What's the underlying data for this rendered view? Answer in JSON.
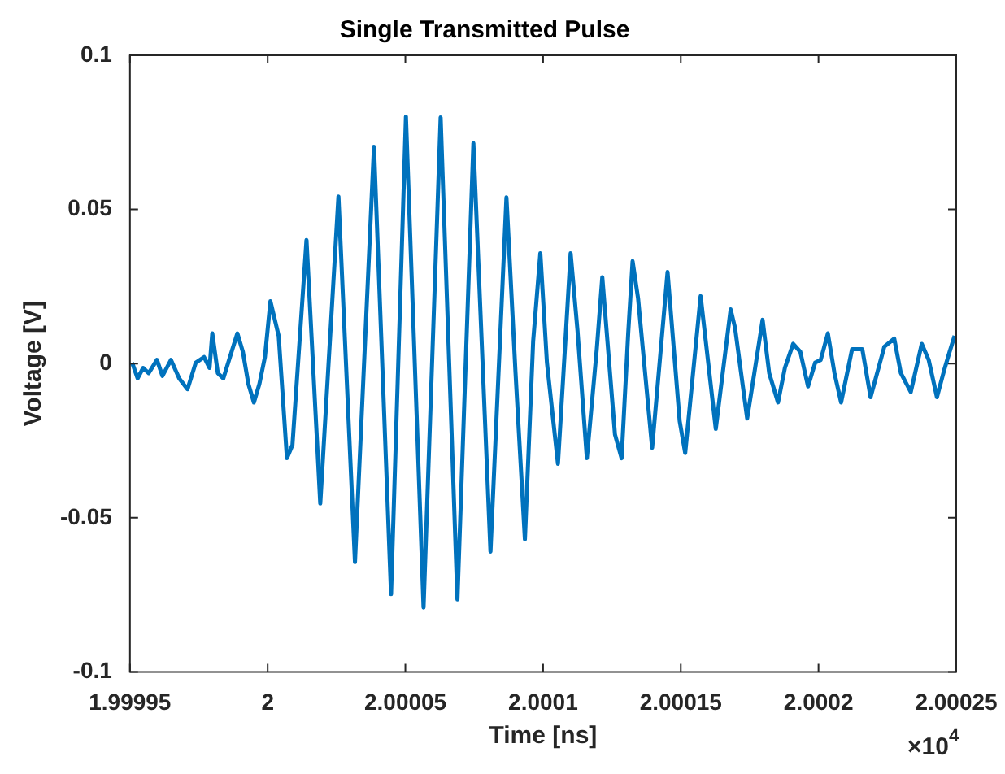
{
  "chart_data": {
    "type": "line",
    "title": "Single Transmitted Pulse",
    "xlabel": "Time [ns]",
    "ylabel": "Voltage [V]",
    "color": "#0072bd",
    "annotations": [
      "×10$^{4}$"
    ],
    "xlim": [
      1.99995,
      2.00025
    ],
    "ylim": [
      -0.1,
      0.1
    ],
    "xticks": [
      1.99995,
      2,
      2.00005,
      2.0001,
      2.00015,
      2.0002,
      2.00025
    ],
    "yticks": [
      -0.1,
      -0.05,
      0,
      0.05,
      0.1
    ],
    "x": [
      1.9999508,
      1.9999528,
      1.9999548,
      1.9999568,
      1.9999598,
      1.9999618,
      1.9999649,
      1.9999679,
      1.9999709,
      1.9999739,
      1.9999769,
      1.9999789,
      1.9999799,
      1.9999819,
      1.9999839,
      1.9999869,
      1.999989,
      1.999991,
      1.999993,
      1.999995,
      1.999997,
      1.999999,
      2.000001,
      2.000004,
      2.000007,
      2.000009,
      2.0000141,
      2.0000191,
      2.0000257,
      2.0000317,
      2.0000386,
      2.0000448,
      2.0000502,
      2.0000566,
      2.0000628,
      2.0000689,
      2.0000747,
      2.0000809,
      2.0000867,
      2.00009,
      2.0000934,
      2.0000964,
      2.000099,
      2.0001014,
      2.0001054,
      2.0001074,
      2.00011,
      2.0001125,
      2.0001159,
      2.0001195,
      2.0001215,
      2.0001261,
      2.0001285,
      2.0001309,
      2.0001325,
      2.0001345,
      2.0001396,
      2.0001452,
      2.0001496,
      2.0001516,
      2.0001572,
      2.0001627,
      2.0001681,
      2.0001697,
      2.0001741,
      2.0001767,
      2.0001797,
      2.0001821,
      2.0001853,
      2.0001878,
      2.0001908,
      2.0001934,
      2.0001962,
      2.0001988,
      2.0002008,
      2.0002034,
      2.0002058,
      2.0002082,
      2.0002122,
      2.0002159,
      2.0002189,
      2.0002239,
      2.0002275,
      2.0002299,
      2.0002335,
      2.0002375,
      2.00024,
      2.000243,
      2.0002456,
      2.0002476,
      2.0002494
    ],
    "values": [
      0.0003,
      -0.0048,
      -0.0014,
      -0.0031,
      0.0012,
      -0.004,
      0.0012,
      -0.0048,
      -0.0083,
      0.0003,
      0.0021,
      -0.0014,
      0.0098,
      -0.0031,
      -0.0048,
      0.0038,
      0.0098,
      0.0038,
      -0.0066,
      -0.0126,
      -0.0066,
      0.0021,
      0.0202,
      0.009,
      -0.0307,
      -0.0264,
      0.0401,
      -0.0454,
      0.0542,
      -0.0644,
      0.0703,
      -0.0748,
      0.0801,
      -0.0791,
      0.0798,
      -0.0765,
      0.0715,
      -0.061,
      0.0539,
      -0.0031,
      -0.057,
      0.0073,
      0.0358,
      0.0003,
      -0.0325,
      -0.0031,
      0.0358,
      0.0107,
      -0.0307,
      0.0047,
      0.028,
      -0.023,
      -0.0307,
      0.0098,
      0.0332,
      0.0211,
      -0.0273,
      0.0297,
      -0.0187,
      -0.029,
      0.0219,
      -0.0212,
      0.0176,
      0.0116,
      -0.0178,
      -0.0031,
      0.0142,
      -0.0031,
      -0.0126,
      -0.0014,
      0.0064,
      0.0038,
      -0.0074,
      0.0003,
      0.0012,
      0.0098,
      -0.0031,
      -0.0126,
      0.0047,
      0.0047,
      -0.0109,
      0.0055,
      0.0081,
      -0.0031,
      -0.0092,
      0.0064,
      0.0012,
      -0.0109,
      -0.0022,
      0.0038,
      0.009
    ]
  }
}
